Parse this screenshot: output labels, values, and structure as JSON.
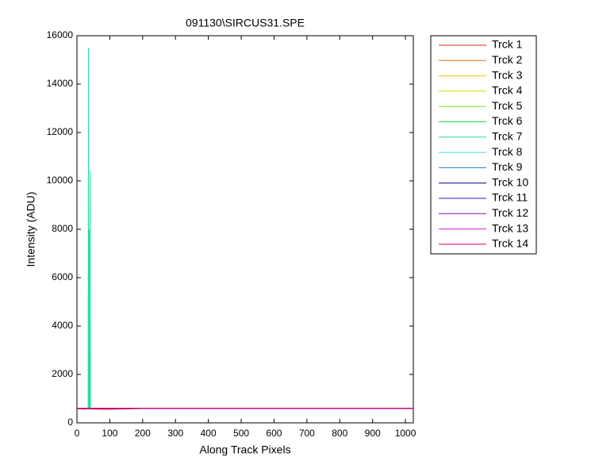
{
  "chart_data": {
    "type": "line",
    "title": "091130\\SIRCUS31.SPE",
    "x_label": "Along Track Pixels",
    "y_label": "Intensity (ADU)",
    "x": [
      0,
      30,
      34,
      35,
      36,
      37,
      38,
      39,
      40,
      41,
      42,
      44,
      60,
      100,
      200,
      1024
    ],
    "xlim": [
      0,
      1024
    ],
    "xticks": [
      0,
      100,
      200,
      300,
      400,
      500,
      600,
      700,
      800,
      900,
      1000
    ],
    "ylim": [
      0,
      16000
    ],
    "yticks": [
      0,
      2000,
      4000,
      6000,
      8000,
      10000,
      12000,
      14000,
      16000
    ],
    "series": [
      {
        "name": "Trck 1",
        "color": "#e02020",
        "values": [
          580,
          570,
          590,
          580,
          575,
          585,
          570,
          580,
          590,
          575,
          580,
          570,
          565,
          560,
          590,
          600
        ]
      },
      {
        "name": "Trck 2",
        "color": "#f07000",
        "values": [
          590,
          590,
          595,
          590,
          590,
          595,
          590,
          590,
          595,
          590,
          590,
          595,
          590,
          590,
          595,
          600
        ]
      },
      {
        "name": "Trck 3",
        "color": "#e8c800",
        "values": [
          595,
          595,
          600,
          595,
          595,
          600,
          595,
          595,
          600,
          595,
          595,
          600,
          595,
          595,
          600,
          600
        ]
      },
      {
        "name": "Trck 4",
        "color": "#d0e000",
        "values": [
          600,
          600,
          600,
          600,
          600,
          600,
          600,
          600,
          600,
          600,
          600,
          600,
          600,
          600,
          600,
          600
        ]
      },
      {
        "name": "Trck 5",
        "color": "#80e020",
        "values": [
          600,
          600,
          600,
          600,
          600,
          600,
          600,
          600,
          600,
          600,
          600,
          600,
          600,
          600,
          600,
          600
        ]
      },
      {
        "name": "Trck 6",
        "color": "#20e040",
        "values": [
          600,
          600,
          600,
          600,
          600,
          600,
          600,
          600,
          600,
          600,
          600,
          600,
          600,
          600,
          600,
          600
        ]
      },
      {
        "name": "Trck 7",
        "color": "#20e0a0",
        "values": [
          600,
          600,
          620,
          15500,
          600,
          610,
          8000,
          600,
          10400,
          620,
          600,
          600,
          600,
          600,
          600,
          600
        ]
      },
      {
        "name": "Trck 8",
        "color": "#30e0e0",
        "values": [
          600,
          600,
          600,
          600,
          600,
          600,
          600,
          600,
          600,
          600,
          600,
          600,
          600,
          600,
          600,
          600
        ]
      },
      {
        "name": "Trck 9",
        "color": "#2080c8",
        "values": [
          600,
          600,
          600,
          600,
          600,
          600,
          600,
          600,
          600,
          600,
          600,
          600,
          600,
          600,
          600,
          600
        ]
      },
      {
        "name": "Trck 10",
        "color": "#000080",
        "values": [
          600,
          600,
          600,
          600,
          600,
          600,
          600,
          600,
          600,
          600,
          600,
          600,
          600,
          600,
          600,
          600
        ]
      },
      {
        "name": "Trck 11",
        "color": "#4010c8",
        "values": [
          600,
          600,
          600,
          600,
          600,
          600,
          600,
          600,
          600,
          600,
          600,
          600,
          600,
          600,
          600,
          600
        ]
      },
      {
        "name": "Trck 12",
        "color": "#8010c0",
        "values": [
          600,
          600,
          600,
          600,
          600,
          600,
          600,
          600,
          600,
          600,
          600,
          600,
          600,
          600,
          600,
          600
        ]
      },
      {
        "name": "Trck 13",
        "color": "#d020d0",
        "values": [
          600,
          600,
          600,
          600,
          600,
          600,
          600,
          600,
          600,
          600,
          600,
          600,
          600,
          600,
          600,
          600
        ]
      },
      {
        "name": "Trck 14",
        "color": "#d80060",
        "values": [
          600,
          600,
          600,
          600,
          600,
          600,
          600,
          600,
          600,
          600,
          600,
          600,
          600,
          600,
          600,
          600
        ]
      }
    ]
  }
}
